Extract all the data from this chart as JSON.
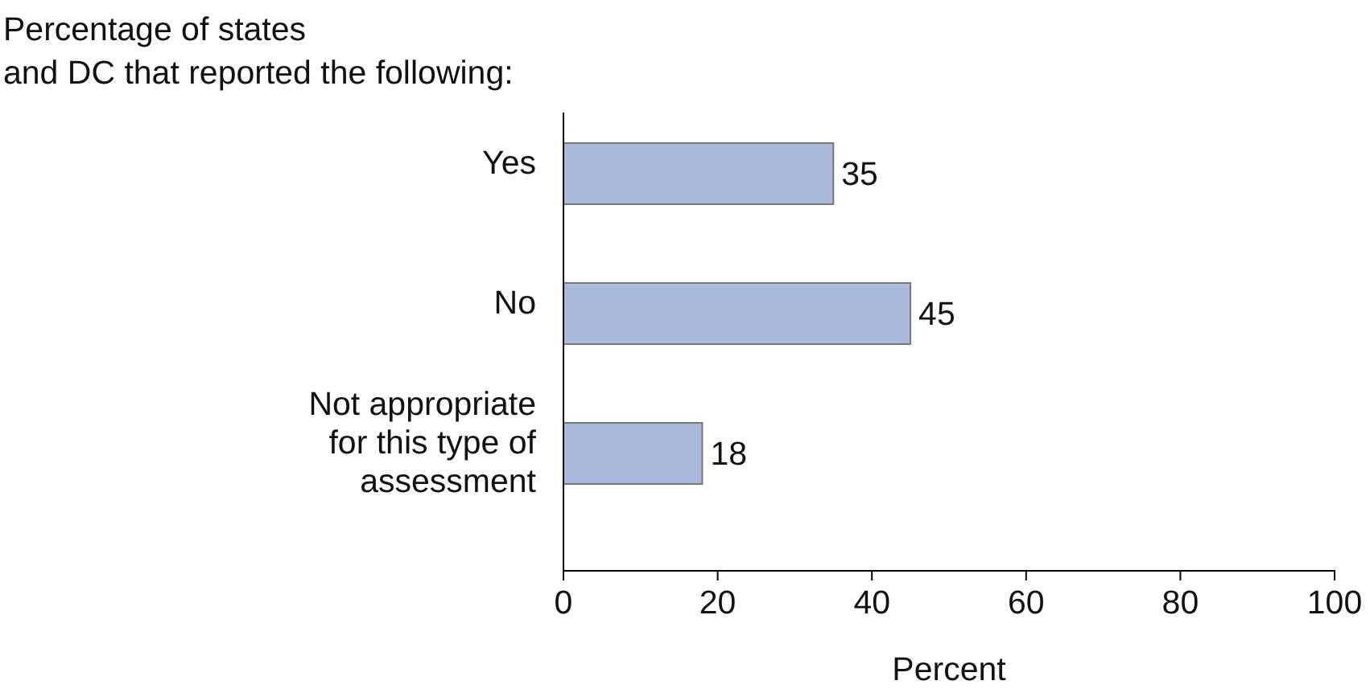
{
  "chart_data": {
    "type": "bar",
    "orientation": "horizontal",
    "title": "Percentage of states and DC that reported the following:",
    "xlabel": "Percent",
    "categories": [
      "Yes",
      "No",
      "Not appropriate for this type of assessment"
    ],
    "values": [
      35,
      45,
      18
    ],
    "color": "#aab9dc",
    "xlim": [
      0,
      100
    ],
    "xticks": [
      0,
      20,
      40,
      60,
      80,
      100
    ],
    "data_labels": true
  }
}
